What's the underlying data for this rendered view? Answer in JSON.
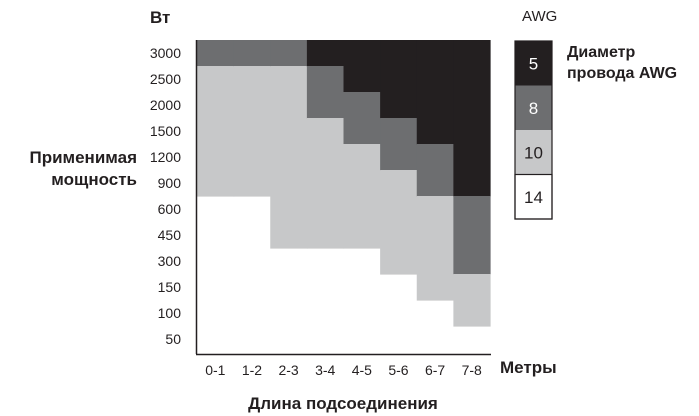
{
  "chart_data": {
    "type": "heatmap",
    "y_unit_label": "Вт",
    "y_title": [
      "Применимая",
      "мощность"
    ],
    "x_unit_label": "Метры",
    "x_title": "Длина подсоединения",
    "x_categories": [
      "0-1",
      "1-2",
      "2-3",
      "3-4",
      "4-5",
      "5-6",
      "6-7",
      "7-8"
    ],
    "y_categories": [
      "3000",
      "2500",
      "2000",
      "1500",
      "1200",
      "900",
      "600",
      "450",
      "300",
      "150",
      "100",
      "50"
    ],
    "legend": {
      "title": "AWG",
      "caption": [
        "Диаметр",
        "провода AWG"
      ],
      "items": [
        {
          "label": "5",
          "color": "#231f20",
          "text_color": "#ffffff"
        },
        {
          "label": "8",
          "color": "#6d6e70",
          "text_color": "#ffffff"
        },
        {
          "label": "10",
          "color": "#c7c8c9",
          "text_color": "#231f20"
        },
        {
          "label": "14",
          "color": "#ffffff",
          "text_color": "#231f20"
        }
      ]
    },
    "boundaries": {
      "note": "Number of top rows (from 3000 W downward) that reach each wire gauge or thicker, per length column.",
      "at_least_8_rows": [
        1,
        1,
        1,
        3,
        4,
        5,
        6,
        9
      ],
      "at_least_10_rows": [
        6,
        6,
        8,
        8,
        8,
        9,
        10,
        11
      ],
      "at_least_14_rows": [
        12,
        12,
        12,
        12,
        12,
        12,
        12,
        12
      ],
      "gauge_5_rows": [
        0,
        0,
        0,
        1,
        2,
        3,
        4,
        6
      ]
    }
  }
}
